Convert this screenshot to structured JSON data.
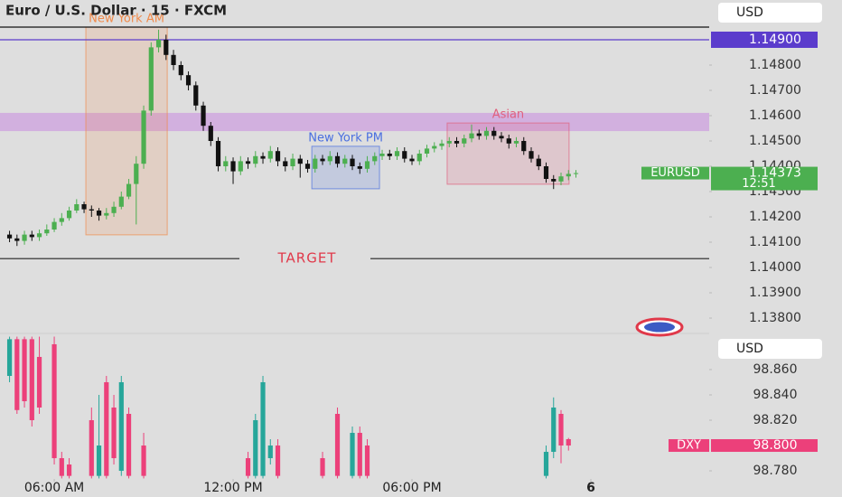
{
  "chart_data": [
    {
      "type": "candlestick",
      "title": "Euro / U.S. Dollar · 15 · FXCM",
      "currency": "USD",
      "symbol_label": "EURUSD",
      "last_value": 1.14373,
      "countdown": "12:51",
      "up_color": "#4caf50",
      "down_color": "#111111",
      "label_color": "#4caf50",
      "x": [
        4.5,
        4.75,
        5,
        5.25,
        5.5,
        5.75,
        6,
        6.25,
        6.5,
        6.75,
        7,
        7.25,
        7.5,
        7.75,
        8,
        8.25,
        8.5,
        8.75,
        9,
        9.25,
        9.5,
        9.75,
        10,
        10.25,
        10.5,
        10.75,
        11,
        11.25,
        11.5,
        11.75,
        12,
        12.25,
        12.5,
        12.75,
        13,
        13.25,
        13.5,
        13.75,
        14,
        14.25,
        14.5,
        14.75,
        15,
        15.25,
        15.5,
        15.75,
        16,
        16.25,
        16.5,
        16.75,
        17,
        17.25,
        17.5,
        17.75,
        18,
        18.25,
        18.5,
        18.75,
        19,
        19.25,
        19.5,
        19.75,
        20,
        20.25,
        20.5,
        20.75,
        21,
        21.25,
        21.5,
        21.75,
        22,
        22.25,
        22.5,
        22.75,
        23,
        23.25,
        23.5
      ],
      "open": [
        1.1413,
        1.14115,
        1.14105,
        1.1413,
        1.1412,
        1.14135,
        1.1415,
        1.1418,
        1.14195,
        1.14225,
        1.1425,
        1.1423,
        1.14225,
        1.14205,
        1.14215,
        1.1424,
        1.1428,
        1.1433,
        1.1441,
        1.1462,
        1.1487,
        1.149,
        1.1484,
        1.148,
        1.1476,
        1.1472,
        1.1464,
        1.1456,
        1.145,
        1.144,
        1.1442,
        1.1438,
        1.1442,
        1.1441,
        1.1444,
        1.1443,
        1.1446,
        1.1442,
        1.144,
        1.1443,
        1.1441,
        1.1439,
        1.1443,
        1.1442,
        1.1444,
        1.1441,
        1.1443,
        1.144,
        1.1439,
        1.1442,
        1.1444,
        1.1445,
        1.1444,
        1.1446,
        1.1443,
        1.1442,
        1.1445,
        1.1447,
        1.1448,
        1.1449,
        1.145,
        1.1449,
        1.1451,
        1.1453,
        1.1452,
        1.1454,
        1.1452,
        1.1451,
        1.1449,
        1.145,
        1.1446,
        1.1443,
        1.144,
        1.1435,
        1.1434,
        1.1436,
        1.1437
      ],
      "high": [
        1.14145,
        1.1413,
        1.14145,
        1.14145,
        1.1415,
        1.1417,
        1.14195,
        1.14215,
        1.1424,
        1.1427,
        1.1426,
        1.14245,
        1.14235,
        1.14235,
        1.1426,
        1.143,
        1.1435,
        1.1444,
        1.1464,
        1.1489,
        1.1494,
        1.1492,
        1.1486,
        1.14815,
        1.14775,
        1.14735,
        1.14655,
        1.14575,
        1.14515,
        1.1444,
        1.14435,
        1.1444,
        1.14435,
        1.1446,
        1.14455,
        1.1448,
        1.14475,
        1.14435,
        1.1445,
        1.14445,
        1.14425,
        1.14445,
        1.14445,
        1.1446,
        1.14455,
        1.14445,
        1.14445,
        1.14415,
        1.1444,
        1.14455,
        1.14465,
        1.14465,
        1.14475,
        1.14475,
        1.14445,
        1.14465,
        1.14485,
        1.14495,
        1.14505,
        1.14515,
        1.14515,
        1.14525,
        1.14565,
        1.14545,
        1.14555,
        1.14555,
        1.14535,
        1.14525,
        1.14515,
        1.14515,
        1.14475,
        1.14445,
        1.14415,
        1.14365,
        1.14375,
        1.14385,
        1.14385
      ],
      "low": [
        1.141,
        1.14085,
        1.1409,
        1.14105,
        1.14105,
        1.14125,
        1.1414,
        1.14165,
        1.14185,
        1.14215,
        1.14215,
        1.142,
        1.14185,
        1.1419,
        1.142,
        1.1423,
        1.1427,
        1.1417,
        1.1439,
        1.146,
        1.1485,
        1.1482,
        1.1478,
        1.1474,
        1.147,
        1.1462,
        1.1454,
        1.1448,
        1.1438,
        1.1438,
        1.1433,
        1.14365,
        1.1439,
        1.14395,
        1.1441,
        1.14415,
        1.144,
        1.1438,
        1.14385,
        1.14355,
        1.14375,
        1.14375,
        1.14405,
        1.14405,
        1.14395,
        1.14395,
        1.14385,
        1.1437,
        1.14375,
        1.14405,
        1.14425,
        1.14425,
        1.14425,
        1.14415,
        1.14405,
        1.14405,
        1.14435,
        1.14455,
        1.14465,
        1.14475,
        1.14475,
        1.14475,
        1.14495,
        1.14505,
        1.14505,
        1.14505,
        1.14495,
        1.1447,
        1.14475,
        1.14445,
        1.14415,
        1.14385,
        1.14335,
        1.1431,
        1.14325,
        1.14345,
        1.14355
      ],
      "close": [
        1.14115,
        1.14105,
        1.1413,
        1.1412,
        1.14135,
        1.1415,
        1.1418,
        1.14195,
        1.14225,
        1.1425,
        1.1423,
        1.14225,
        1.14205,
        1.14215,
        1.1424,
        1.1428,
        1.1433,
        1.1441,
        1.1462,
        1.1487,
        1.149,
        1.1484,
        1.148,
        1.1476,
        1.1472,
        1.1464,
        1.1456,
        1.145,
        1.144,
        1.1442,
        1.1438,
        1.1442,
        1.1441,
        1.1444,
        1.1443,
        1.1446,
        1.1442,
        1.144,
        1.1443,
        1.1441,
        1.1439,
        1.1443,
        1.1442,
        1.1444,
        1.1441,
        1.1443,
        1.144,
        1.1439,
        1.1442,
        1.1444,
        1.1445,
        1.1444,
        1.1446,
        1.1443,
        1.1442,
        1.1445,
        1.1447,
        1.1448,
        1.1449,
        1.145,
        1.1449,
        1.1451,
        1.1453,
        1.1452,
        1.1454,
        1.1452,
        1.1451,
        1.1449,
        1.145,
        1.1446,
        1.1443,
        1.144,
        1.1435,
        1.1434,
        1.1436,
        1.1437,
        1.14373
      ],
      "xlim": [
        4.18,
        27.97
      ],
      "ylim": [
        1.150571,
        1.137536
      ],
      "yticks": [
        {
          "value": 1.148,
          "label": "1.14800"
        },
        {
          "value": 1.147,
          "label": "1.14700"
        },
        {
          "value": 1.146,
          "label": "1.14600"
        },
        {
          "value": 1.145,
          "label": "1.14500"
        },
        {
          "value": 1.144,
          "label": "1.14400"
        },
        {
          "value": 1.143,
          "label": "1.14300"
        },
        {
          "value": 1.142,
          "label": "1.14200"
        },
        {
          "value": 1.141,
          "label": "1.14100"
        },
        {
          "value": 1.14,
          "label": "1.14000"
        },
        {
          "value": 1.139,
          "label": "1.13900"
        },
        {
          "value": 1.138,
          "label": "1.13800"
        }
      ],
      "zones": [
        {
          "y": [
            1.14539,
            1.14611
          ],
          "color": "#c98be0"
        }
      ],
      "lines": [
        {
          "value": 1.1495,
          "color": "#111111"
        },
        {
          "value": 1.149,
          "label": "1.14900",
          "color": "#5b3ccc"
        },
        {
          "value": 1.14035,
          "label": "TARGET",
          "color": "#222222"
        }
      ],
      "sessions": [
        {
          "label": "New York AM",
          "x": [
            7.06,
            9.79
          ],
          "y": [
            1.1495,
            1.14129
          ],
          "color": "#f08a4b"
        },
        {
          "label": "New York PM",
          "x": [
            14.64,
            16.91
          ],
          "y": [
            1.14479,
            1.14311
          ],
          "color": "#4a6fe0"
        },
        {
          "label": "Asian",
          "x": [
            19.18,
            23.27
          ],
          "y": [
            1.14571,
            1.14329
          ],
          "color": "#e0607e"
        }
      ]
    },
    {
      "type": "candlestick",
      "currency": "USD",
      "symbol_label": "DXY",
      "last_value": {
        "value": 98.8,
        "label": "98.800"
      },
      "up_color": "#26a69a",
      "down_color": "#ec407a",
      "label_color": "#ec407a",
      "x": [
        4.5,
        4.75,
        5,
        5.25,
        5.5,
        6,
        6.25,
        6.5,
        7.25,
        7.5,
        7.75,
        8,
        8.25,
        8.5,
        9,
        12.5,
        12.75,
        13,
        13.25,
        13.5,
        15,
        15.5,
        16,
        16.25,
        16.5,
        22.5,
        22.75,
        23,
        23.25
      ],
      "open": [
        98.855,
        98.884,
        98.884,
        98.884,
        98.87,
        98.88,
        98.79,
        98.785,
        98.82,
        98.776,
        98.85,
        98.83,
        98.78,
        98.825,
        98.8,
        98.79,
        98.776,
        98.776,
        98.79,
        98.8,
        98.79,
        98.825,
        98.776,
        98.81,
        98.8,
        98.776,
        98.795,
        98.825,
        98.805
      ],
      "high": [
        98.886,
        98.886,
        98.886,
        98.886,
        98.886,
        98.886,
        98.795,
        98.79,
        98.83,
        98.84,
        98.855,
        98.84,
        98.855,
        98.83,
        98.81,
        98.795,
        98.825,
        98.855,
        98.805,
        98.805,
        98.795,
        98.83,
        98.815,
        98.815,
        98.805,
        98.8,
        98.838,
        98.828,
        98.806
      ],
      "low": [
        98.85,
        98.825,
        98.83,
        98.815,
        98.825,
        98.785,
        98.774,
        98.774,
        98.774,
        98.774,
        98.774,
        98.785,
        98.776,
        98.774,
        98.774,
        98.774,
        98.774,
        98.774,
        98.785,
        98.774,
        98.774,
        98.774,
        98.774,
        98.774,
        98.774,
        98.774,
        98.79,
        98.786,
        98.796
      ],
      "close": [
        98.884,
        98.828,
        98.835,
        98.82,
        98.83,
        98.79,
        98.776,
        98.776,
        98.776,
        98.8,
        98.776,
        98.79,
        98.85,
        98.776,
        98.776,
        98.776,
        98.82,
        98.85,
        98.8,
        98.776,
        98.776,
        98.776,
        98.81,
        98.776,
        98.776,
        98.795,
        98.83,
        98.8,
        98.8
      ],
      "xlim": [
        4.18,
        27.97
      ],
      "ylim": [
        98.8864,
        98.7736
      ],
      "yticks": [
        {
          "value": 98.86,
          "label": "98.860"
        },
        {
          "value": 98.84,
          "label": "98.840"
        },
        {
          "value": 98.82,
          "label": "98.820"
        },
        {
          "value": 98.78,
          "label": "98.780"
        }
      ],
      "xticks": [
        {
          "value": 6,
          "label": "06:00 AM"
        },
        {
          "value": 12,
          "label": "12:00 PM"
        },
        {
          "value": 18,
          "label": "06:00 PM"
        },
        {
          "value": 24,
          "label": "6"
        }
      ]
    }
  ]
}
